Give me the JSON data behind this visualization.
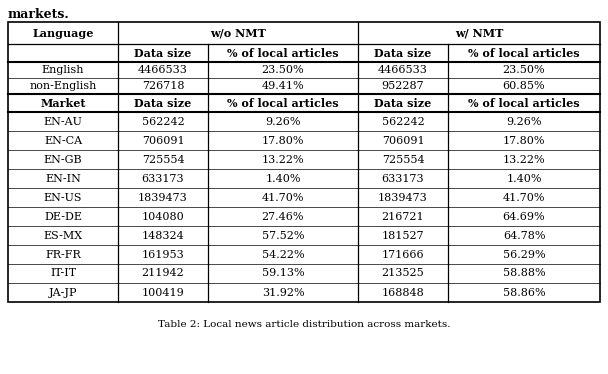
{
  "title_top": "markets.",
  "caption": "Table 2: Local news article distribution across markets.",
  "col_headers_row1": [
    "Language",
    "w/o NMT",
    "w/ NMT"
  ],
  "col_headers_row2": [
    "Data size",
    "% of local articles",
    "Data size",
    "% of local articles"
  ],
  "data_rows_lang": [
    [
      "English",
      "4466533",
      "23.50%",
      "4466533",
      "23.50%"
    ],
    [
      "non-English",
      "726718",
      "49.41%",
      "952287",
      "60.85%"
    ]
  ],
  "data_rows_market": [
    [
      "EN-AU",
      "562242",
      "9.26%",
      "562242",
      "9.26%"
    ],
    [
      "EN-CA",
      "706091",
      "17.80%",
      "706091",
      "17.80%"
    ],
    [
      "EN-GB",
      "725554",
      "13.22%",
      "725554",
      "13.22%"
    ],
    [
      "EN-IN",
      "633173",
      "1.40%",
      "633173",
      "1.40%"
    ],
    [
      "EN-US",
      "1839473",
      "41.70%",
      "1839473",
      "41.70%"
    ],
    [
      "DE-DE",
      "104080",
      "27.46%",
      "216721",
      "64.69%"
    ],
    [
      "ES-MX",
      "148324",
      "57.52%",
      "181527",
      "64.78%"
    ],
    [
      "FR-FR",
      "161953",
      "54.22%",
      "171666",
      "56.29%"
    ],
    [
      "IT-IT",
      "211942",
      "59.13%",
      "213525",
      "58.88%"
    ],
    [
      "JA-JP",
      "100419",
      "31.92%",
      "168848",
      "58.86%"
    ]
  ],
  "bg_color": "#ffffff",
  "text_color": "#000000",
  "font_size": 8.0,
  "header_font_size": 8.0
}
